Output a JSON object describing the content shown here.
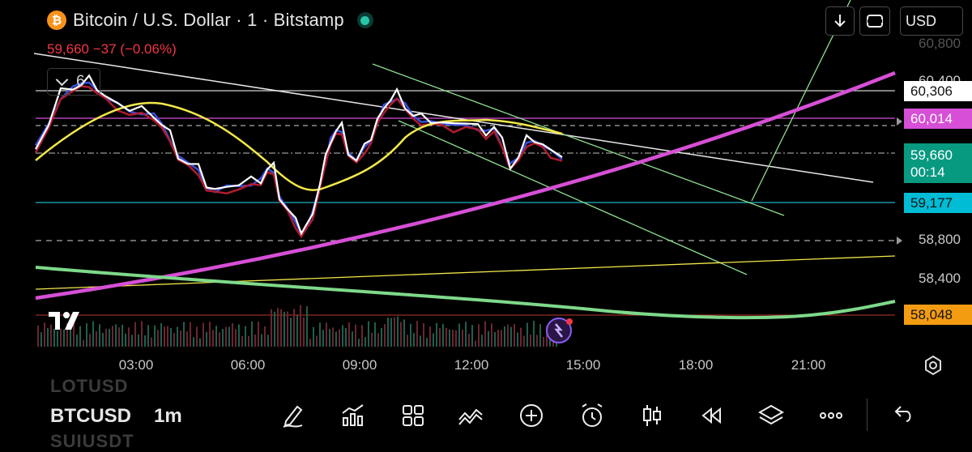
{
  "header": {
    "coin_symbol": "₿",
    "title": "Bitcoin / U.S. Dollar · 1 · Bitstamp",
    "change": "59,660  −37 (−0.06%)",
    "indicators_count": "6"
  },
  "top_controls": {
    "currency": "USD"
  },
  "price_axis": {
    "ticks": [
      "60,800",
      "60,400",
      "58,800",
      "58,400"
    ],
    "tags": {
      "high": "60,306",
      "magenta": "60,014",
      "current": "59,660",
      "countdown": "00:14",
      "cyan": "59,177",
      "orange": "58,048"
    }
  },
  "time_axis": {
    "ticks": [
      "03:00",
      "06:00",
      "09:00",
      "12:00",
      "15:00",
      "18:00",
      "21:00"
    ]
  },
  "bottom_bar": {
    "ghost_above": "LOTUSD",
    "symbol": "BTCUSD",
    "interval": "1m",
    "ghost_below": "SUIUSDT",
    "tools": [
      "pencil-icon",
      "indicators-icon",
      "layout-icon",
      "draw-icon",
      "add-icon",
      "alert-icon",
      "candles-icon",
      "replay-icon",
      "layers-icon",
      "more-icon",
      "undo-icon"
    ]
  },
  "colors": {
    "magenta": "#d64fd6",
    "green_ma": "#7ed98a",
    "yellow_ma": "#f2e84a",
    "cyan_line": "#00bcd4",
    "orange_tag": "#f39c12",
    "current_tag": "#089981",
    "down_red": "#f23645"
  }
}
